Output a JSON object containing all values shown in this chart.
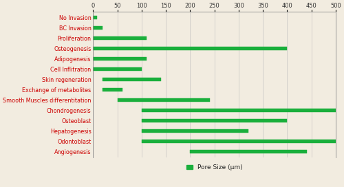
{
  "categories": [
    "No Invasion",
    "BC Invasion",
    "Proliferation",
    "Osteogenesis",
    "Adipogenesis",
    "Cell Inflitration",
    "Skin regeneration",
    "Exchange of metabolites",
    "Smooth Muscles differentitation",
    "Chondrogenesis",
    "Osteoblast",
    "Hepatogenesis",
    "Odontoblast",
    "Angiogenesis"
  ],
  "bar_starts": [
    0,
    0,
    0,
    0,
    0,
    0,
    20,
    20,
    50,
    100,
    100,
    100,
    100,
    200
  ],
  "bar_ends": [
    8,
    20,
    110,
    400,
    110,
    100,
    140,
    60,
    240,
    500,
    400,
    320,
    500,
    440
  ],
  "bar_color": "#1aaf3c",
  "label_color": "#cc0000",
  "background_color": "#f2ece0",
  "xlim": [
    0,
    500
  ],
  "xticks": [
    0,
    50,
    100,
    150,
    200,
    250,
    300,
    350,
    400,
    450,
    500
  ],
  "legend_label": "Pore Size (μm)",
  "legend_color": "#1aaf3c",
  "grid_color": "#bbbbbb",
  "label_fontsize": 5.8,
  "tick_fontsize": 6.0,
  "bar_height": 0.38
}
